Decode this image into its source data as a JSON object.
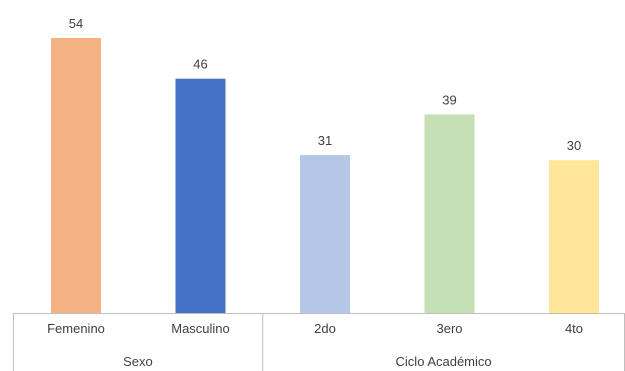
{
  "chart_data": {
    "type": "bar",
    "title": "",
    "xlabel": "",
    "ylabel": "",
    "ylim": [
      0,
      54
    ],
    "grid": false,
    "legend": "none",
    "categories": [
      "Femenino",
      "Masculino",
      "2do",
      "3ero",
      "4to"
    ],
    "values": [
      54,
      46,
      31,
      39,
      30
    ],
    "colors": [
      "#F4B183",
      "#4472C4",
      "#B4C7E7",
      "#C5E0B4",
      "#FFE699"
    ],
    "groups": [
      {
        "name": "Sexo",
        "categories": [
          "Femenino",
          "Masculino"
        ]
      },
      {
        "name": "Ciclo Académico",
        "categories": [
          "2do",
          "3ero",
          "4to"
        ]
      }
    ]
  }
}
